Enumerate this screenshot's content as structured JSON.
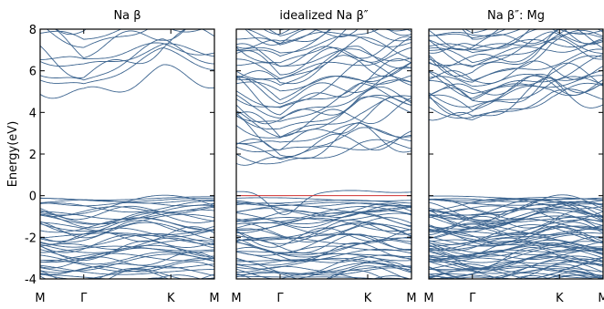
{
  "chart_data": {
    "type": "line",
    "ylabel": "Energy(eV)",
    "ylim": [
      -4,
      8
    ],
    "y_ticks": [
      {
        "value": -4,
        "label": "-4"
      },
      {
        "value": -2,
        "label": "-2"
      },
      {
        "value": 0,
        "label": "0"
      },
      {
        "value": 2,
        "label": "2"
      },
      {
        "value": 4,
        "label": "4"
      },
      {
        "value": 6,
        "label": "6"
      },
      {
        "value": 8,
        "label": "8"
      }
    ],
    "x_ticks": [
      {
        "label": "M",
        "pos": 0.0
      },
      {
        "label": "Γ",
        "pos": 0.25
      },
      {
        "label": "K",
        "pos": 0.75
      },
      {
        "label": "M",
        "pos": 1.0
      }
    ],
    "band_color": "#3d6590",
    "highlight_color": "#d03030",
    "panels": [
      {
        "title": "Na β",
        "valence_top": 0.0,
        "valence_count": 44,
        "conduction_bottom": 4.7,
        "conduction_count": 12,
        "highlight_band": false
      },
      {
        "title": "idealized Na β″",
        "valence_top": -0.1,
        "valence_count": 46,
        "conduction_bottom": 1.3,
        "conduction_count": 40,
        "highlight_band": true
      },
      {
        "title": "Na β″: Mg",
        "valence_top": 0.0,
        "valence_count": 70,
        "conduction_bottom": 3.4,
        "conduction_count": 34,
        "highlight_band": false
      }
    ]
  }
}
